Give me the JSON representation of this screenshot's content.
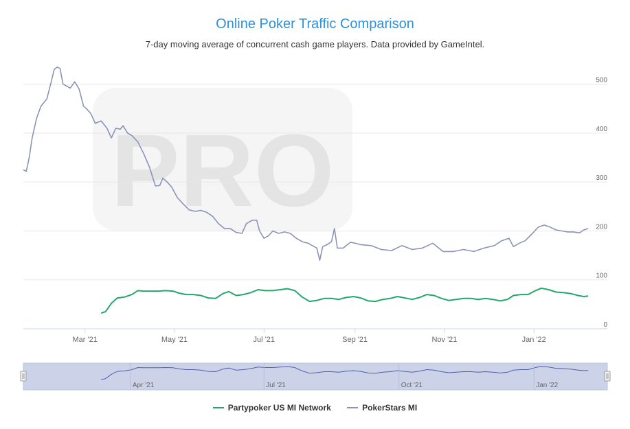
{
  "title": "Online Poker Traffic Comparison",
  "subtitle": "7-day moving average of concurrent cash game players. Data provided by GameIntel.",
  "chart_data": {
    "type": "line",
    "x_range": [
      "2021-01-18",
      "2022-02-20"
    ],
    "ylim": [
      0,
      550
    ],
    "y_ticks": [
      0,
      100,
      200,
      300,
      400,
      500
    ],
    "x_ticks": [
      {
        "date": "2021-03-01",
        "label": "Mar '21"
      },
      {
        "date": "2021-05-01",
        "label": "May '21"
      },
      {
        "date": "2021-07-01",
        "label": "Jul '21"
      },
      {
        "date": "2021-09-01",
        "label": "Sep '21"
      },
      {
        "date": "2021-11-01",
        "label": "Nov '21"
      },
      {
        "date": "2022-01-01",
        "label": "Jan '22"
      }
    ],
    "grid": true,
    "legend_position": "bottom-center",
    "watermark": "PRO",
    "series": [
      {
        "name": "PokerStars MI",
        "color": "#8b93b8",
        "points": [
          [
            "2021-01-18",
            325
          ],
          [
            "2021-01-20",
            322
          ],
          [
            "2021-01-22",
            350
          ],
          [
            "2021-01-24",
            390
          ],
          [
            "2021-01-27",
            430
          ],
          [
            "2021-01-30",
            455
          ],
          [
            "2021-02-03",
            470
          ],
          [
            "2021-02-06",
            505
          ],
          [
            "2021-02-08",
            530
          ],
          [
            "2021-02-10",
            535
          ],
          [
            "2021-02-12",
            532
          ],
          [
            "2021-02-14",
            500
          ],
          [
            "2021-02-16",
            497
          ],
          [
            "2021-02-19",
            492
          ],
          [
            "2021-02-22",
            505
          ],
          [
            "2021-02-25",
            490
          ],
          [
            "2021-02-28",
            455
          ],
          [
            "2021-03-02",
            450
          ],
          [
            "2021-03-05",
            440
          ],
          [
            "2021-03-08",
            420
          ],
          [
            "2021-03-12",
            425
          ],
          [
            "2021-03-16",
            410
          ],
          [
            "2021-03-19",
            390
          ],
          [
            "2021-03-22",
            410
          ],
          [
            "2021-03-25",
            408
          ],
          [
            "2021-03-27",
            415
          ],
          [
            "2021-03-30",
            400
          ],
          [
            "2021-04-02",
            395
          ],
          [
            "2021-04-06",
            382
          ],
          [
            "2021-04-10",
            358
          ],
          [
            "2021-04-14",
            330
          ],
          [
            "2021-04-18",
            292
          ],
          [
            "2021-04-21",
            293
          ],
          [
            "2021-04-23",
            308
          ],
          [
            "2021-04-26",
            300
          ],
          [
            "2021-04-29",
            290
          ],
          [
            "2021-05-03",
            268
          ],
          [
            "2021-05-07",
            255
          ],
          [
            "2021-05-11",
            243
          ],
          [
            "2021-05-15",
            240
          ],
          [
            "2021-05-19",
            242
          ],
          [
            "2021-05-23",
            238
          ],
          [
            "2021-05-27",
            230
          ],
          [
            "2021-05-31",
            215
          ],
          [
            "2021-06-04",
            205
          ],
          [
            "2021-06-08",
            205
          ],
          [
            "2021-06-12",
            197
          ],
          [
            "2021-06-16",
            195
          ],
          [
            "2021-06-19",
            215
          ],
          [
            "2021-06-23",
            222
          ],
          [
            "2021-06-26",
            222
          ],
          [
            "2021-06-28",
            200
          ],
          [
            "2021-07-01",
            185
          ],
          [
            "2021-07-04",
            190
          ],
          [
            "2021-07-07",
            200
          ],
          [
            "2021-07-11",
            195
          ],
          [
            "2021-07-15",
            198
          ],
          [
            "2021-07-19",
            195
          ],
          [
            "2021-07-23",
            185
          ],
          [
            "2021-07-27",
            178
          ],
          [
            "2021-07-31",
            175
          ],
          [
            "2021-08-03",
            170
          ],
          [
            "2021-08-06",
            165
          ],
          [
            "2021-08-08",
            140
          ],
          [
            "2021-08-10",
            168
          ],
          [
            "2021-08-13",
            172
          ],
          [
            "2021-08-16",
            178
          ],
          [
            "2021-08-18",
            205
          ],
          [
            "2021-08-20",
            165
          ],
          [
            "2021-08-24",
            165
          ],
          [
            "2021-08-29",
            177
          ],
          [
            "2021-09-05",
            172
          ],
          [
            "2021-09-12",
            170
          ],
          [
            "2021-09-19",
            162
          ],
          [
            "2021-09-26",
            160
          ],
          [
            "2021-10-03",
            170
          ],
          [
            "2021-10-10",
            162
          ],
          [
            "2021-10-17",
            165
          ],
          [
            "2021-10-24",
            175
          ],
          [
            "2021-10-31",
            158
          ],
          [
            "2021-11-07",
            158
          ],
          [
            "2021-11-14",
            162
          ],
          [
            "2021-11-21",
            158
          ],
          [
            "2021-11-28",
            165
          ],
          [
            "2021-12-05",
            170
          ],
          [
            "2021-12-10",
            180
          ],
          [
            "2021-12-15",
            185
          ],
          [
            "2021-12-18",
            168
          ],
          [
            "2021-12-22",
            175
          ],
          [
            "2021-12-26",
            180
          ],
          [
            "2021-12-31",
            195
          ],
          [
            "2022-01-04",
            208
          ],
          [
            "2022-01-08",
            212
          ],
          [
            "2022-01-12",
            208
          ],
          [
            "2022-01-16",
            202
          ],
          [
            "2022-01-20",
            200
          ],
          [
            "2022-01-24",
            198
          ],
          [
            "2022-01-28",
            198
          ],
          [
            "2022-02-01",
            196
          ],
          [
            "2022-02-04",
            202
          ],
          [
            "2022-02-07",
            205
          ]
        ]
      },
      {
        "name": "Partypoker US MI Network",
        "color": "#22a86a",
        "points": [
          [
            "2021-03-12",
            32
          ],
          [
            "2021-03-15",
            35
          ],
          [
            "2021-03-19",
            52
          ],
          [
            "2021-03-23",
            63
          ],
          [
            "2021-03-28",
            65
          ],
          [
            "2021-04-02",
            70
          ],
          [
            "2021-04-06",
            78
          ],
          [
            "2021-04-10",
            77
          ],
          [
            "2021-04-15",
            77
          ],
          [
            "2021-04-20",
            77
          ],
          [
            "2021-04-25",
            78
          ],
          [
            "2021-04-30",
            77
          ],
          [
            "2021-05-04",
            73
          ],
          [
            "2021-05-09",
            70
          ],
          [
            "2021-05-14",
            70
          ],
          [
            "2021-05-19",
            68
          ],
          [
            "2021-05-24",
            63
          ],
          [
            "2021-05-29",
            62
          ],
          [
            "2021-06-03",
            72
          ],
          [
            "2021-06-07",
            76
          ],
          [
            "2021-06-12",
            68
          ],
          [
            "2021-06-17",
            70
          ],
          [
            "2021-06-22",
            74
          ],
          [
            "2021-06-27",
            80
          ],
          [
            "2021-07-02",
            78
          ],
          [
            "2021-07-07",
            78
          ],
          [
            "2021-07-12",
            80
          ],
          [
            "2021-07-17",
            82
          ],
          [
            "2021-07-22",
            78
          ],
          [
            "2021-07-27",
            65
          ],
          [
            "2021-08-01",
            56
          ],
          [
            "2021-08-06",
            58
          ],
          [
            "2021-08-11",
            62
          ],
          [
            "2021-08-16",
            62
          ],
          [
            "2021-08-21",
            60
          ],
          [
            "2021-08-26",
            64
          ],
          [
            "2021-08-31",
            66
          ],
          [
            "2021-09-05",
            63
          ],
          [
            "2021-09-10",
            57
          ],
          [
            "2021-09-15",
            56
          ],
          [
            "2021-09-20",
            60
          ],
          [
            "2021-09-25",
            62
          ],
          [
            "2021-09-30",
            66
          ],
          [
            "2021-10-05",
            63
          ],
          [
            "2021-10-10",
            60
          ],
          [
            "2021-10-15",
            64
          ],
          [
            "2021-10-20",
            70
          ],
          [
            "2021-10-25",
            68
          ],
          [
            "2021-10-30",
            62
          ],
          [
            "2021-11-04",
            58
          ],
          [
            "2021-11-09",
            60
          ],
          [
            "2021-11-14",
            62
          ],
          [
            "2021-11-19",
            62
          ],
          [
            "2021-11-24",
            60
          ],
          [
            "2021-11-29",
            62
          ],
          [
            "2021-12-04",
            60
          ],
          [
            "2021-12-09",
            57
          ],
          [
            "2021-12-14",
            60
          ],
          [
            "2021-12-18",
            68
          ],
          [
            "2021-12-23",
            70
          ],
          [
            "2021-12-28",
            70
          ],
          [
            "2022-01-02",
            78
          ],
          [
            "2022-01-06",
            83
          ],
          [
            "2022-01-11",
            80
          ],
          [
            "2022-01-16",
            75
          ],
          [
            "2022-01-21",
            74
          ],
          [
            "2022-01-26",
            72
          ],
          [
            "2022-01-31",
            68
          ],
          [
            "2022-02-04",
            66
          ],
          [
            "2022-02-07",
            67
          ]
        ]
      }
    ]
  },
  "navigator": {
    "x_ticks": [
      {
        "date": "2021-04-01",
        "label": "Apr '21"
      },
      {
        "date": "2021-07-01",
        "label": "Jul '21"
      },
      {
        "date": "2021-10-01",
        "label": "Oct '21"
      },
      {
        "date": "2022-01-01",
        "label": "Jan '22"
      }
    ],
    "series_name": "Partypoker US MI Network"
  },
  "legend": {
    "items": [
      {
        "name": "Partypoker US MI Network",
        "color": "#22a86a"
      },
      {
        "name": "PokerStars MI",
        "color": "#8b93b8"
      }
    ]
  }
}
